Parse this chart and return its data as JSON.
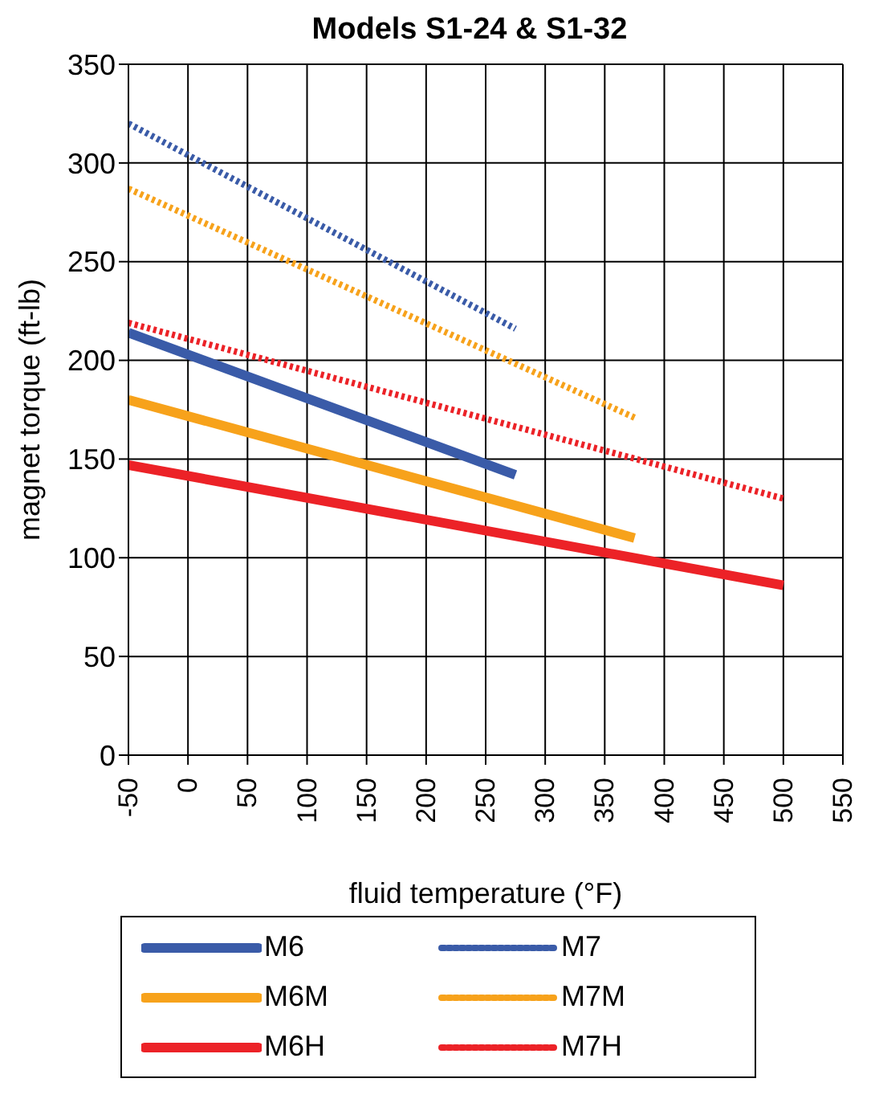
{
  "chart_data": {
    "type": "line",
    "title": "Models S1-24 & S1-32",
    "xlabel": "fluid temperature (°F)",
    "ylabel": "magnet torque (ft-lb)",
    "xlim": [
      -50,
      550
    ],
    "xticks": [
      -50,
      0,
      50,
      100,
      150,
      200,
      250,
      300,
      350,
      400,
      450,
      500,
      550
    ],
    "ylim": [
      0,
      350
    ],
    "yticks": [
      0,
      50,
      100,
      150,
      200,
      250,
      300,
      350
    ],
    "grid": true,
    "legend": "bottom",
    "marker": "none",
    "series": [
      {
        "name": "M6",
        "color": "#3a5ba8",
        "x": [
          -50,
          275
        ],
        "values": [
          214,
          142
        ],
        "line_style": "solid"
      },
      {
        "name": "M7",
        "color": "#3a5ba8",
        "x": [
          -50,
          275
        ],
        "values": [
          320,
          216
        ],
        "line_style": "dotted"
      },
      {
        "name": "M6M",
        "color": "#f7a21b",
        "x": [
          -50,
          375
        ],
        "values": [
          180,
          110
        ],
        "line_style": "solid"
      },
      {
        "name": "M7M",
        "color": "#f7a21b",
        "x": [
          -50,
          375
        ],
        "values": [
          287,
          171
        ],
        "line_style": "dotted"
      },
      {
        "name": "M6H",
        "color": "#ec2227",
        "x": [
          -50,
          500
        ],
        "values": [
          147,
          86
        ],
        "line_style": "solid"
      },
      {
        "name": "M7H",
        "color": "#ec2227",
        "x": [
          -50,
          500
        ],
        "values": [
          219,
          130
        ],
        "line_style": "dotted"
      }
    ]
  }
}
